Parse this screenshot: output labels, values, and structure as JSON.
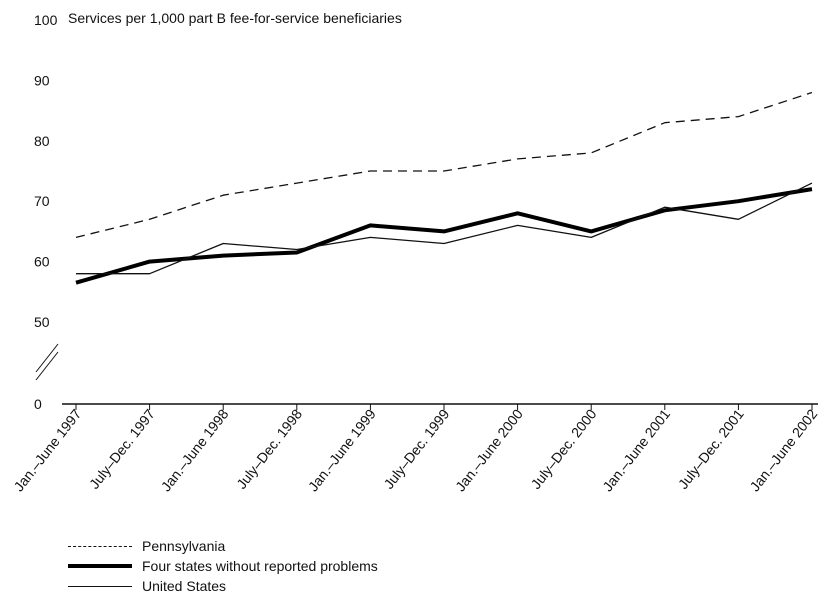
{
  "chart_data": {
    "type": "line",
    "ylabel": "Services per 1,000 part B fee-for-service beneficiaries",
    "y_ticks": [
      "0",
      "50",
      "60",
      "70",
      "80",
      "90",
      "100"
    ],
    "ylim": [
      50,
      100
    ],
    "axis_break": true,
    "categories": [
      "Jan.–June 1997",
      "July–Dec. 1997",
      "Jan.–June 1998",
      "July–Dec. 1998",
      "Jan.–June 1999",
      "July–Dec. 1999",
      "Jan.–June 2000",
      "July–Dec. 2000",
      "Jan.–June 2001",
      "July–Dec. 2001",
      "Jan.–June 2002"
    ],
    "series": [
      {
        "name": "Pennsylvania",
        "style": "dashed",
        "color": "#111111",
        "values": [
          64,
          67,
          71,
          73,
          75,
          75,
          77,
          78,
          83,
          84,
          88
        ]
      },
      {
        "name": "Four states without reported problems",
        "style": "thick",
        "color": "#000000",
        "values": [
          56.5,
          60,
          61,
          61.5,
          66,
          65,
          68,
          65,
          68.5,
          70,
          72
        ]
      },
      {
        "name": "United States",
        "style": "thin",
        "color": "#111111",
        "values": [
          58,
          58,
          63,
          62,
          64,
          63,
          66,
          64,
          69,
          67,
          73
        ]
      }
    ],
    "grid": false,
    "legend_position": "bottom-left"
  }
}
